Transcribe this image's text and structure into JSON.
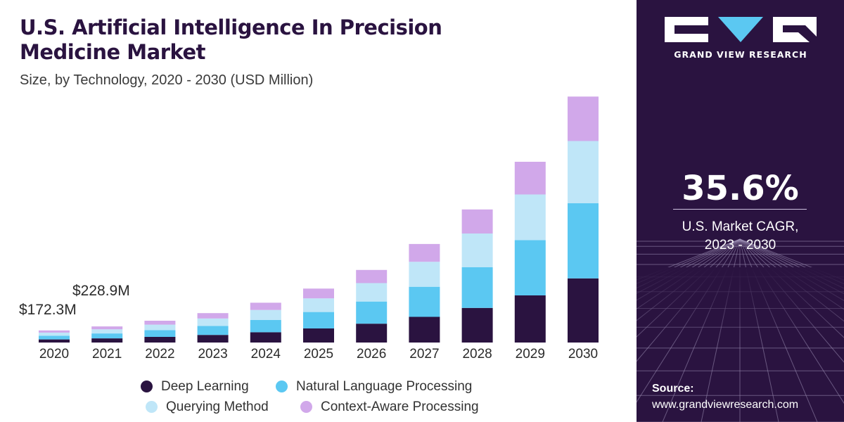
{
  "header": {
    "title_line1": "U.S. Artificial Intelligence In Precision",
    "title_line2": "Medicine Market",
    "subtitle": "Size, by Technology, 2020 - 2030 (USD Million)"
  },
  "annotations": {
    "first": "$172.3M",
    "second": "$228.9M"
  },
  "colors": {
    "panel_bg": "#2a1340",
    "deep_learning": "#2a1340",
    "nlp": "#5bc8f2",
    "querying": "#bfe6f8",
    "context_aware": "#d1a8ea"
  },
  "chart_data": {
    "type": "bar",
    "stacked": true,
    "categories": [
      "2020",
      "2021",
      "2022",
      "2023",
      "2024",
      "2025",
      "2026",
      "2027",
      "2028",
      "2029",
      "2030"
    ],
    "series": [
      {
        "name": "Deep Learning",
        "values": [
          44,
          59,
          80,
          108,
          146,
          200,
          268,
          365,
          492,
          670,
          912
        ]
      },
      {
        "name": "Natural Language Processing",
        "values": [
          53,
          70,
          95,
          128,
          174,
          234,
          315,
          428,
          578,
          785,
          1068
        ]
      },
      {
        "name": "Querying Method",
        "values": [
          44,
          59,
          79,
          106,
          143,
          194,
          262,
          355,
          480,
          650,
          885
        ]
      },
      {
        "name": "Context-Aware Processing",
        "values": [
          31,
          41,
          56,
          76,
          103,
          139,
          187,
          253,
          342,
          465,
          632
        ]
      }
    ],
    "totals_labeled": {
      "2020": "$172.3M",
      "2021": "$228.9M"
    },
    "ylim": [
      0,
      3500
    ],
    "grid": false,
    "legend_position": "bottom"
  },
  "legend": [
    {
      "label": "Deep Learning",
      "color": "#2a1340"
    },
    {
      "label": "Natural Language Processing",
      "color": "#5bc8f2"
    },
    {
      "label": "Querying Method",
      "color": "#bfe6f8"
    },
    {
      "label": "Context-Aware Processing",
      "color": "#d1a8ea"
    }
  ],
  "panel": {
    "brand": "GRAND VIEW RESEARCH",
    "cagr_value": "35.6%",
    "cagr_label_line1": "U.S. Market CAGR,",
    "cagr_label_line2": "2023 - 2030",
    "source_title": "Source:",
    "source_url": "www.grandviewresearch.com"
  }
}
